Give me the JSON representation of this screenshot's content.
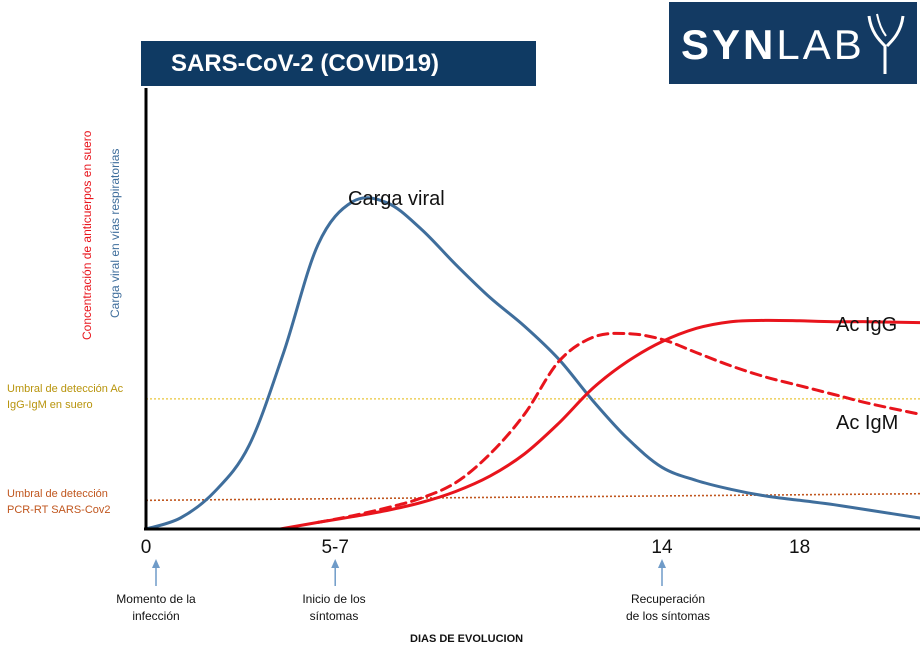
{
  "title": "SARS-CoV-2 (COVID19)",
  "logo": {
    "text_bold": "SYN",
    "text_light": "LAB",
    "color": "#133a63"
  },
  "chart_data": {
    "type": "line",
    "y_axis_labels": [
      {
        "text": "Concentración de anticuerpos en suero",
        "color": "#e8141c"
      },
      {
        "text": "Carga viral en vías respiratorias",
        "color": "#3f6e9c"
      }
    ],
    "xlabel": "DIAS DE EVOLUCION",
    "xlim": [
      0,
      22.5
    ],
    "ylim": [
      0,
      100
    ],
    "xticks": [
      {
        "label": "0",
        "x": 0
      },
      {
        "label": "5-7",
        "x": 5.5
      },
      {
        "label": "14",
        "x": 15
      },
      {
        "label": "18",
        "x": 19
      }
    ],
    "events": [
      {
        "x": 0,
        "label_line1": "Momento de la",
        "label_line2": "infección"
      },
      {
        "x": 5.5,
        "label_line1": "Inicio de los",
        "label_line2": "síntomas"
      },
      {
        "x": 15,
        "label_line1": "Recuperación",
        "label_line2": "de los síntomas"
      }
    ],
    "thresholds": [
      {
        "label_line1": "Umbral de detección Ac",
        "label_line2": "IgG-IgM en suero",
        "y": 29.5,
        "color": "#e8c53a",
        "style": "dotted"
      },
      {
        "label_line1": "Umbral de detección",
        "label_line2": "PCR-RT SARS-Cov2",
        "y_start": 6.5,
        "y_end": 8,
        "color": "#c0561e",
        "style": "dotted"
      }
    ],
    "series": [
      {
        "name": "Carga viral",
        "color": "#3f6e9c",
        "style": "solid",
        "x": [
          0,
          1,
          2,
          3,
          4,
          5,
          6,
          7,
          8,
          9,
          10,
          11,
          12,
          13,
          14,
          15,
          16,
          17,
          18,
          19,
          20,
          21,
          22.5
        ],
        "y": [
          0,
          2.5,
          8.5,
          19,
          40,
          64.5,
          74.2,
          74,
          68,
          60,
          52.5,
          46,
          38.5,
          29,
          20.5,
          14,
          11,
          9,
          7.5,
          6.5,
          5.5,
          4.3,
          2.5
        ]
      },
      {
        "name": "Ac IgG",
        "color": "#e8141c",
        "style": "solid",
        "x": [
          3.9,
          5,
          6,
          7,
          8,
          9,
          10,
          11,
          12,
          13,
          14,
          15,
          16,
          17,
          18,
          19,
          20,
          21,
          22.5
        ],
        "y": [
          0,
          1.5,
          2.8,
          4.2,
          6,
          8.5,
          12,
          17,
          24,
          32,
          38,
          42.5,
          45.5,
          47,
          47.3,
          47.2,
          47,
          47,
          46.8
        ]
      },
      {
        "name": "Ac IgM",
        "color": "#e8141c",
        "style": "dashed",
        "x": [
          5,
          6,
          7,
          8,
          9,
          10,
          11,
          12,
          13,
          14,
          15,
          16,
          17,
          18,
          19,
          20,
          21,
          22.5
        ],
        "y": [
          1.5,
          3,
          4.8,
          7,
          10.5,
          17,
          26,
          38,
          43.5,
          44.3,
          43,
          40,
          37,
          34.5,
          32.5,
          30.5,
          28.5,
          26
        ]
      }
    ],
    "series_labels": [
      {
        "series": "Carga viral",
        "text": "Carga viral"
      },
      {
        "series": "Ac IgG",
        "text": "Ac IgG"
      },
      {
        "series": "Ac IgM",
        "text": "Ac IgM"
      }
    ]
  }
}
